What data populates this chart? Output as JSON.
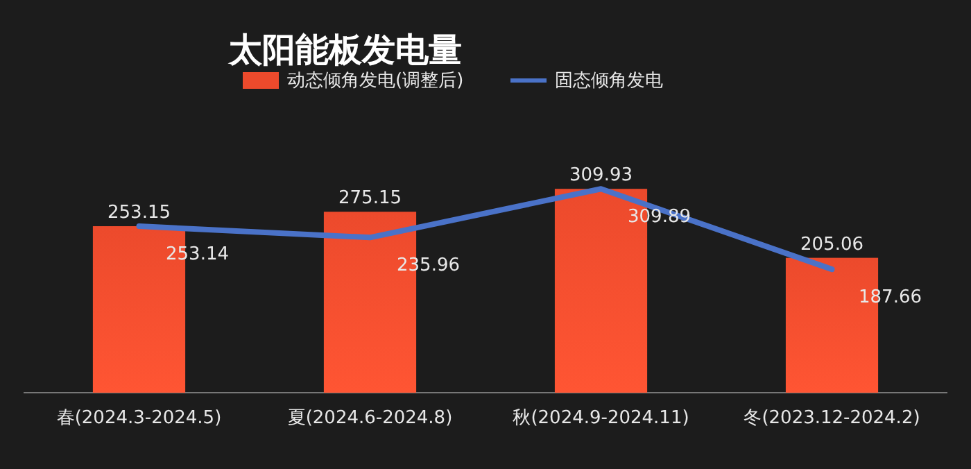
{
  "chart_data": {
    "type": "bar",
    "title": "太阳能板发电量",
    "categories": [
      "春(2024.3-2024.5)",
      "夏(2024.6-2024.8)",
      "秋(2024.9-2024.11)",
      "冬(2023.12-2024.2)"
    ],
    "series": [
      {
        "name": "动态倾角发电(调整后)",
        "color": "#ec4a2c",
        "values": [
          253.15,
          275.15,
          309.93,
          205.06
        ]
      },
      {
        "name": "固态倾角发电",
        "type": "line",
        "color": "#4a72c8",
        "values": [
          253.14,
          235.96,
          309.89,
          187.66
        ]
      }
    ],
    "data_labels": true,
    "legend": "top",
    "grid": false,
    "marker": "none"
  }
}
